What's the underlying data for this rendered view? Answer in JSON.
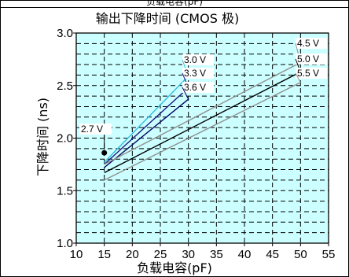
{
  "chart_data": {
    "type": "line",
    "top_caption": "负载电容(pF)",
    "title": "输出下降时间 (CMOS 极)",
    "xlabel": "负载电容(pF)",
    "ylabel": "下降时间 (ns)",
    "xlim": [
      10,
      55
    ],
    "ylim": [
      1.0,
      3.0
    ],
    "xticks": [
      10,
      15,
      20,
      25,
      30,
      35,
      40,
      45,
      50,
      55
    ],
    "yticks": [
      1.0,
      1.5,
      2.0,
      2.5,
      3.0
    ],
    "grid": true,
    "plot_background": "#ccffff",
    "series": [
      {
        "name": "2.7 V",
        "color": "#000000",
        "marker": "dot",
        "x": [
          15
        ],
        "y": [
          1.86
        ]
      },
      {
        "name": "3.0 V",
        "color": "#33bbdd",
        "x": [
          15,
          30
        ],
        "y": [
          1.77,
          2.59
        ]
      },
      {
        "name": "3.3 V",
        "color": "#1a1a80",
        "x": [
          15,
          30
        ],
        "y": [
          1.75,
          2.48
        ]
      },
      {
        "name": "3.6 V",
        "color": "#000060",
        "x": [
          15,
          30
        ],
        "y": [
          1.72,
          2.37
        ]
      },
      {
        "name": "4.5 V",
        "color": "#909090",
        "x": [
          15,
          50
        ],
        "y": [
          1.75,
          2.72
        ]
      },
      {
        "name": "5.0 V",
        "color": "#000000",
        "x": [
          15,
          50
        ],
        "y": [
          1.67,
          2.63
        ]
      },
      {
        "name": "5.5 V",
        "color": "#909090",
        "x": [
          15,
          50
        ],
        "y": [
          1.6,
          2.53
        ]
      }
    ]
  }
}
